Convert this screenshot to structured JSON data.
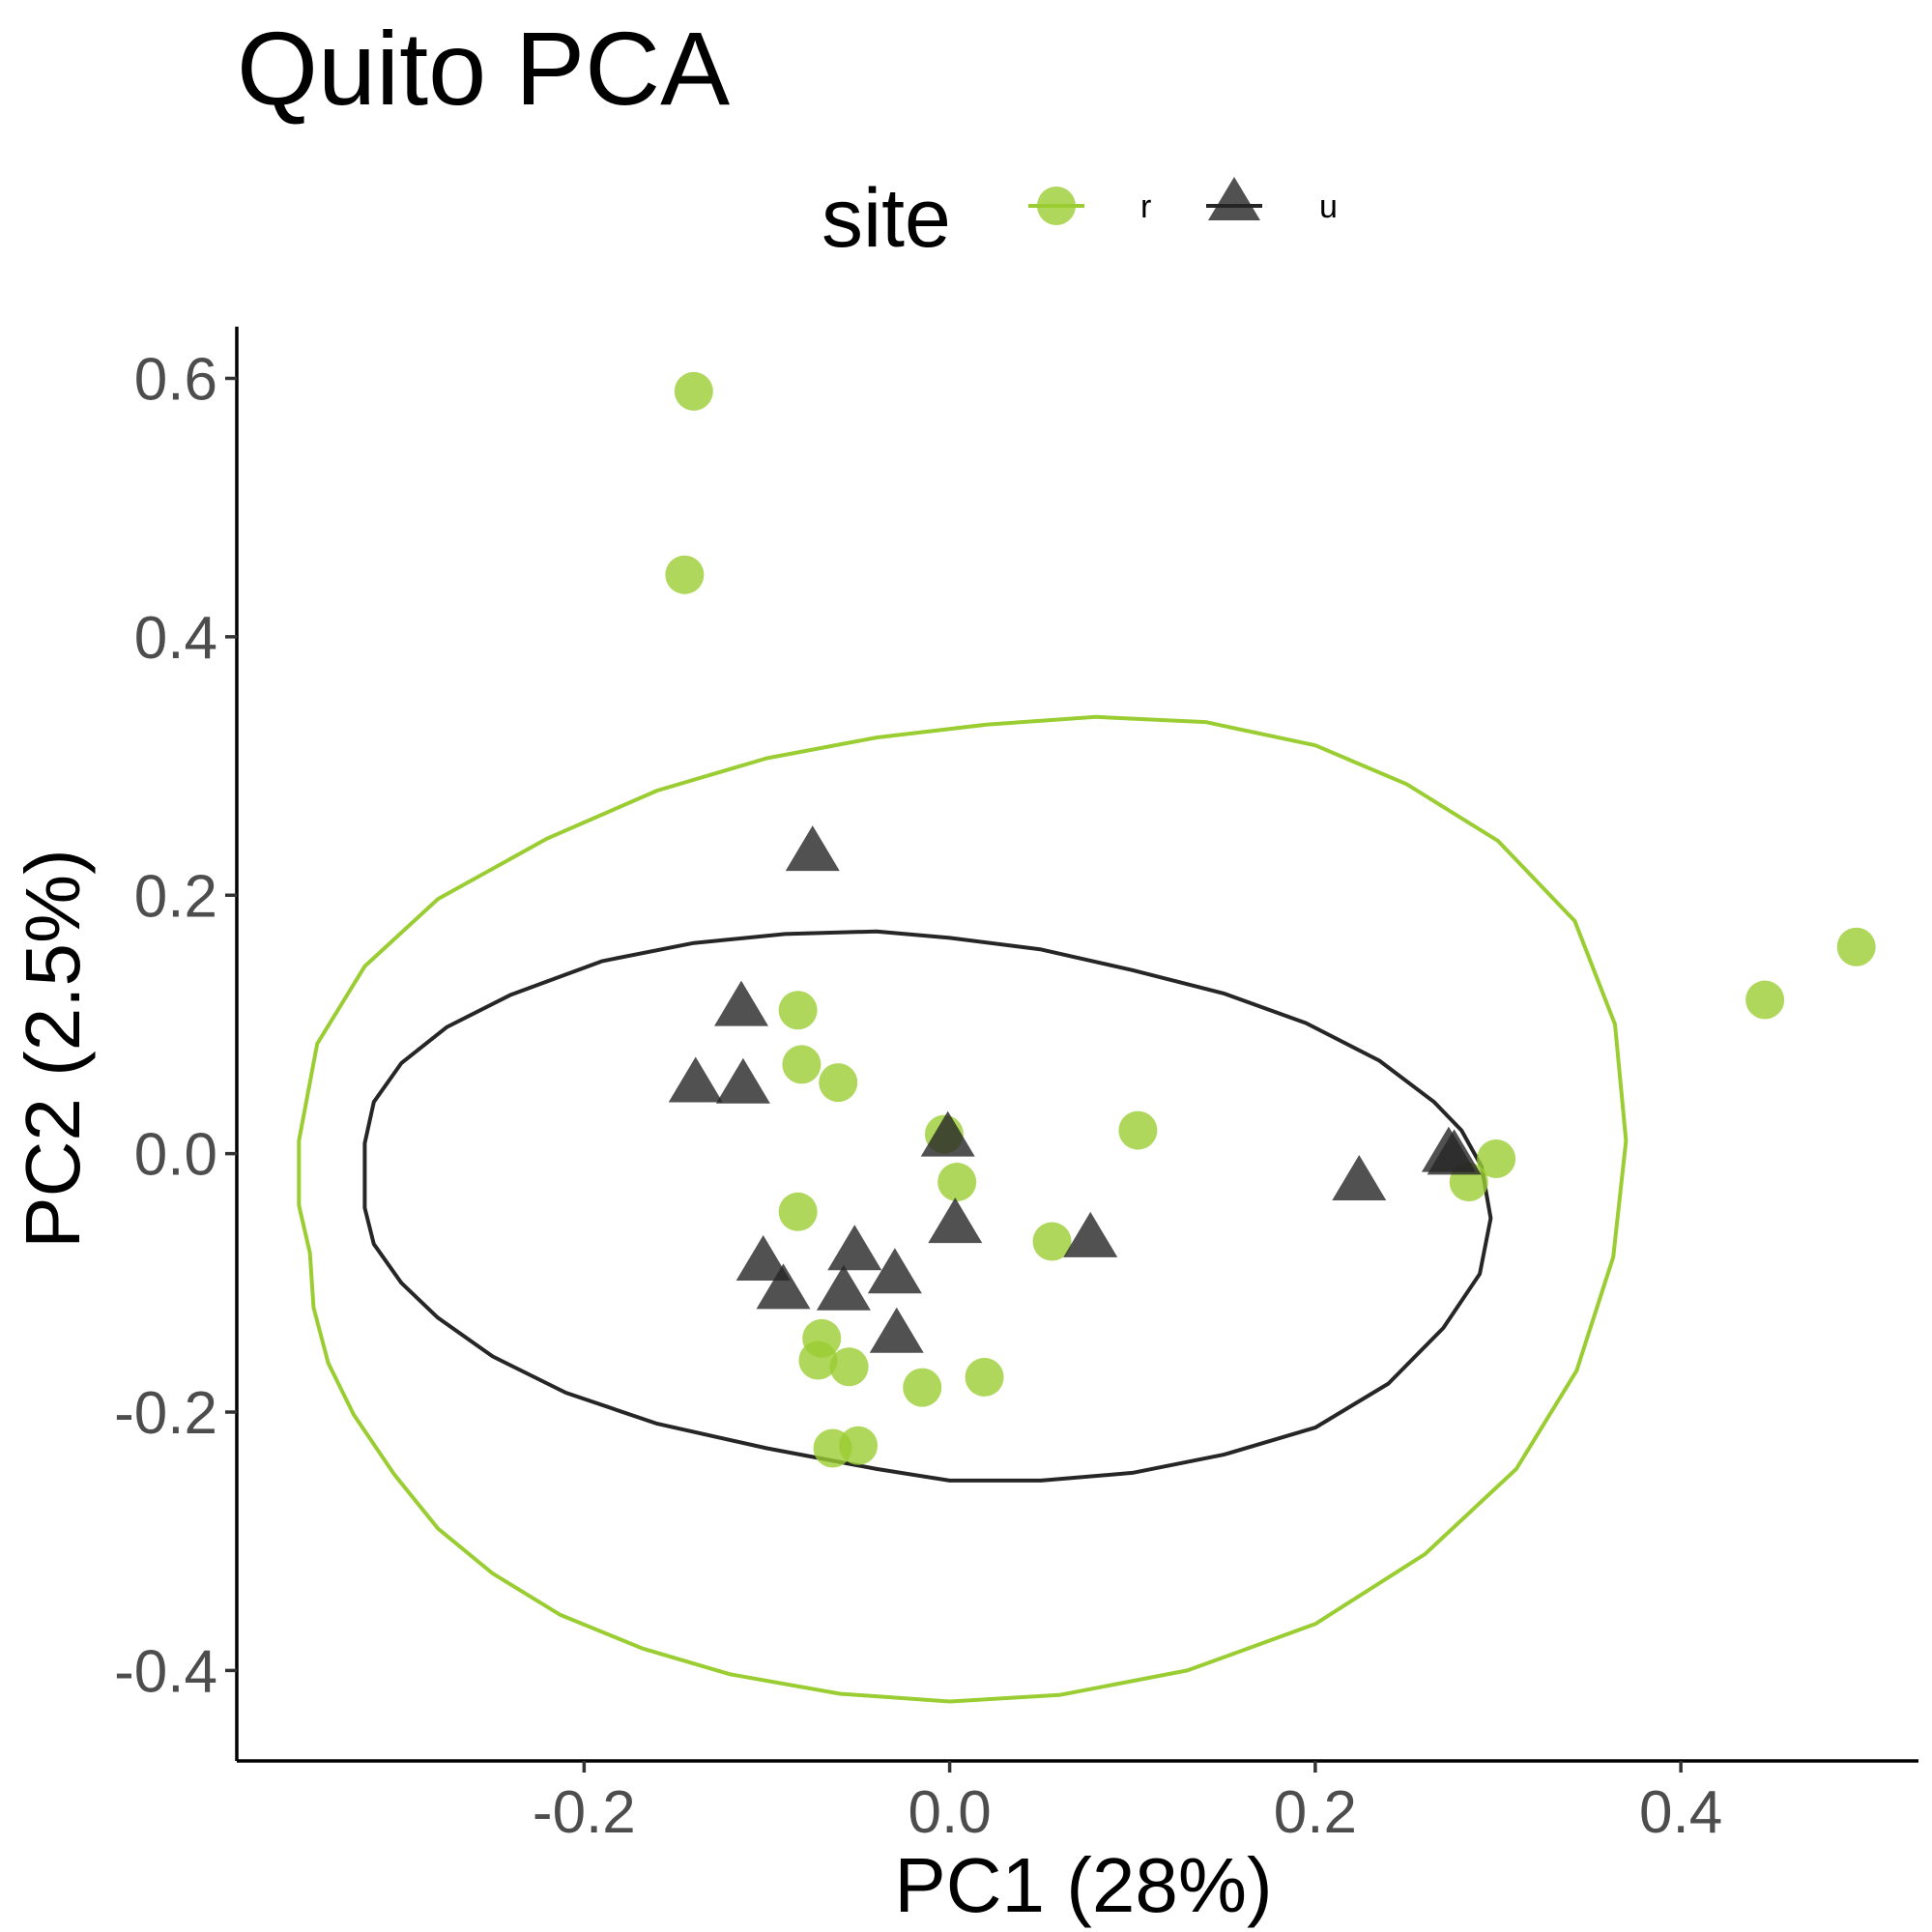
{
  "chart_data": {
    "type": "scatter",
    "title": "Quito PCA",
    "xlabel": "PC1 (28%)",
    "ylabel": "PC2 (2.5%)",
    "xlim": [
      -0.39,
      0.53
    ],
    "ylim": [
      -0.47,
      0.64
    ],
    "x_ticks": [
      -0.2,
      0.0,
      0.2,
      0.4
    ],
    "x_tick_labels": [
      "-0.2",
      "0.0",
      "0.2",
      "0.4"
    ],
    "y_ticks": [
      -0.4,
      -0.2,
      0.0,
      0.2,
      0.4,
      0.6
    ],
    "y_tick_labels": [
      "-0.4",
      "-0.2",
      "0.0",
      "0.2",
      "0.4",
      "0.6"
    ],
    "grid": false,
    "legend": {
      "title": "site",
      "placement": "top",
      "entries": [
        {
          "label": "r",
          "shape": "circle",
          "color": "#9ACD32"
        },
        {
          "label": "u",
          "shape": "triangle",
          "color": "#262626"
        }
      ]
    },
    "series": [
      {
        "name": "r",
        "shape": "circle",
        "color": "#9ACD32",
        "points": [
          [
            -0.14,
            0.59
          ],
          [
            -0.145,
            0.448
          ],
          [
            -0.083,
            0.111
          ],
          [
            -0.081,
            0.069
          ],
          [
            -0.061,
            0.055
          ],
          [
            -0.003,
            0.015
          ],
          [
            0.004,
            -0.022
          ],
          [
            0.103,
            0.018
          ],
          [
            -0.083,
            -0.045
          ],
          [
            0.056,
            -0.068
          ],
          [
            -0.07,
            -0.143
          ],
          [
            -0.072,
            -0.16
          ],
          [
            -0.055,
            -0.165
          ],
          [
            -0.015,
            -0.181
          ],
          [
            0.019,
            -0.173
          ],
          [
            -0.064,
            -0.228
          ],
          [
            -0.05,
            -0.226
          ],
          [
            0.299,
            -0.004
          ],
          [
            0.284,
            -0.022
          ],
          [
            0.446,
            0.119
          ],
          [
            0.496,
            0.16
          ]
        ]
      },
      {
        "name": "u",
        "shape": "triangle",
        "color": "#262626",
        "points": [
          [
            -0.075,
            0.233
          ],
          [
            -0.114,
            0.113
          ],
          [
            -0.139,
            0.054
          ],
          [
            -0.113,
            0.053
          ],
          [
            -0.001,
            0.012
          ],
          [
            0.003,
            -0.055
          ],
          [
            0.077,
            -0.066
          ],
          [
            -0.052,
            -0.076
          ],
          [
            -0.102,
            -0.084
          ],
          [
            -0.091,
            -0.106
          ],
          [
            -0.058,
            -0.107
          ],
          [
            -0.03,
            -0.094
          ],
          [
            -0.029,
            -0.14
          ],
          [
            0.224,
            -0.022
          ],
          [
            0.273,
            0.0
          ],
          [
            0.276,
            -0.002
          ]
        ]
      }
    ],
    "ellipses": [
      {
        "group": "r",
        "color": "#9ACD32",
        "outline": [
          [
            -0.35,
            -0.077
          ],
          [
            -0.348,
            -0.119
          ],
          [
            -0.34,
            -0.162
          ],
          [
            -0.326,
            -0.202
          ],
          [
            -0.304,
            -0.248
          ],
          [
            -0.28,
            -0.29
          ],
          [
            -0.25,
            -0.325
          ],
          [
            -0.213,
            -0.357
          ],
          [
            -0.168,
            -0.383
          ],
          [
            -0.12,
            -0.403
          ],
          [
            -0.06,
            -0.418
          ],
          [
            0.0,
            -0.424
          ],
          [
            0.06,
            -0.419
          ],
          [
            0.13,
            -0.4
          ],
          [
            0.2,
            -0.364
          ],
          [
            0.26,
            -0.31
          ],
          [
            0.31,
            -0.244
          ],
          [
            0.343,
            -0.168
          ],
          [
            0.363,
            -0.08
          ],
          [
            0.37,
            0.01
          ],
          [
            0.364,
            0.1
          ],
          [
            0.342,
            0.18
          ],
          [
            0.3,
            0.242
          ],
          [
            0.25,
            0.286
          ],
          [
            0.2,
            0.316
          ],
          [
            0.14,
            0.334
          ],
          [
            0.08,
            0.338
          ],
          [
            0.02,
            0.332
          ],
          [
            -0.04,
            0.322
          ],
          [
            -0.1,
            0.306
          ],
          [
            -0.16,
            0.281
          ],
          [
            -0.22,
            0.244
          ],
          [
            -0.28,
            0.197
          ],
          [
            -0.32,
            0.145
          ],
          [
            -0.346,
            0.085
          ],
          [
            -0.356,
            0.01
          ],
          [
            -0.356,
            -0.04
          ]
        ]
      },
      {
        "group": "u",
        "color": "#262626",
        "outline": [
          [
            -0.32,
            -0.042
          ],
          [
            -0.315,
            -0.07
          ],
          [
            -0.3,
            -0.1
          ],
          [
            -0.28,
            -0.127
          ],
          [
            -0.25,
            -0.157
          ],
          [
            -0.21,
            -0.185
          ],
          [
            -0.16,
            -0.209
          ],
          [
            -0.1,
            -0.228
          ],
          [
            -0.04,
            -0.244
          ],
          [
            0.0,
            -0.253
          ],
          [
            0.05,
            -0.253
          ],
          [
            0.1,
            -0.247
          ],
          [
            0.15,
            -0.233
          ],
          [
            0.2,
            -0.212
          ],
          [
            0.24,
            -0.178
          ],
          [
            0.27,
            -0.135
          ],
          [
            0.29,
            -0.093
          ],
          [
            0.296,
            -0.05
          ],
          [
            0.291,
            -0.01
          ],
          [
            0.28,
            0.018
          ],
          [
            0.265,
            0.04
          ],
          [
            0.235,
            0.072
          ],
          [
            0.195,
            0.101
          ],
          [
            0.15,
            0.124
          ],
          [
            0.1,
            0.142
          ],
          [
            0.05,
            0.158
          ],
          [
            0.0,
            0.167
          ],
          [
            -0.04,
            0.172
          ],
          [
            -0.09,
            0.17
          ],
          [
            -0.14,
            0.163
          ],
          [
            -0.19,
            0.149
          ],
          [
            -0.24,
            0.123
          ],
          [
            -0.275,
            0.098
          ],
          [
            -0.3,
            0.07
          ],
          [
            -0.315,
            0.04
          ],
          [
            -0.32,
            0.008
          ]
        ]
      }
    ]
  }
}
